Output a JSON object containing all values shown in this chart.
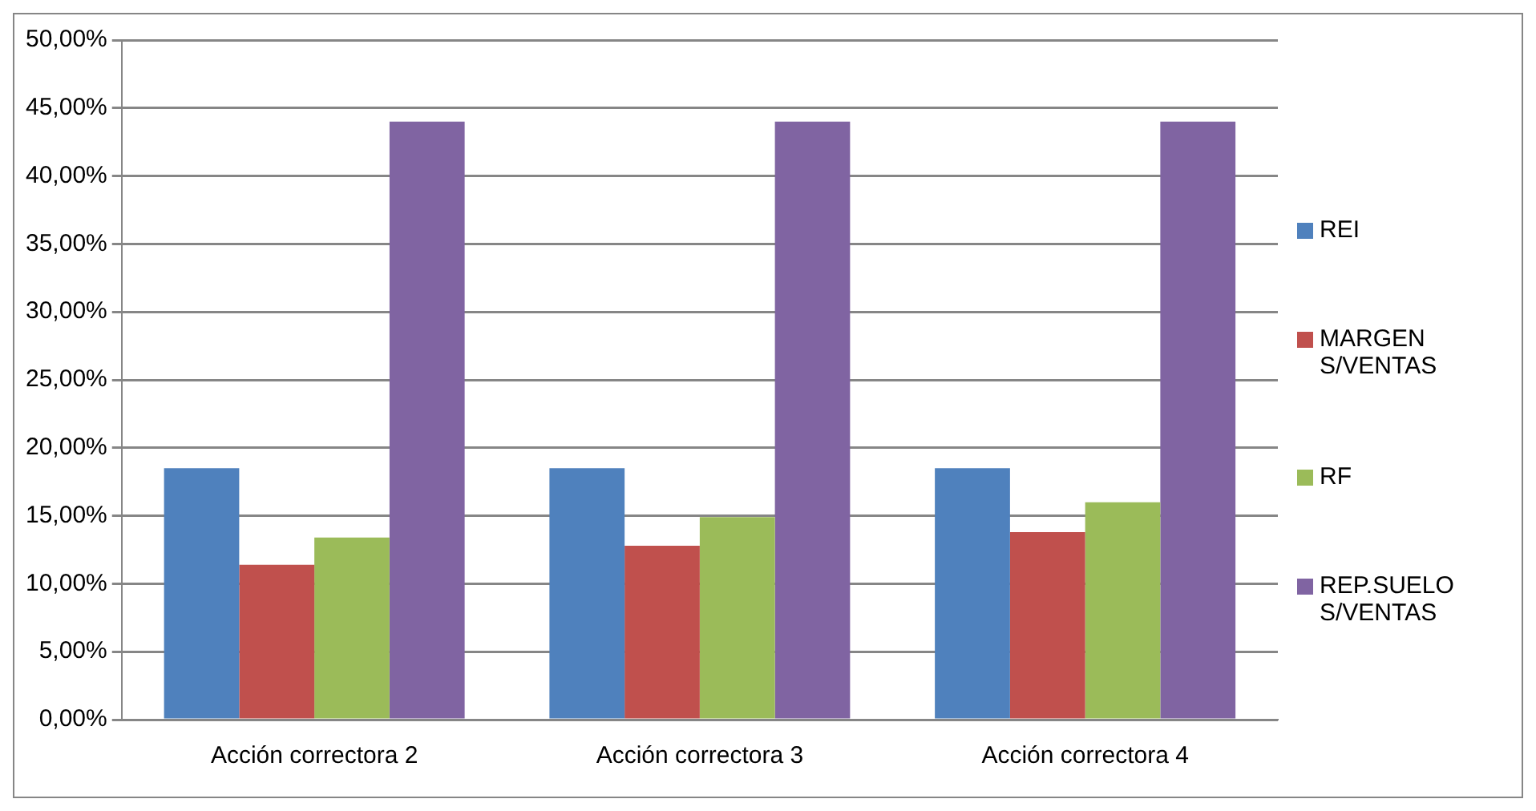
{
  "chart_data": {
    "type": "bar",
    "categories": [
      "Acción correctora 2",
      "Acción correctora 3",
      "Acción correctora 4"
    ],
    "series": [
      {
        "name": "REI",
        "color": "#4f81bd",
        "values": [
          18.5,
          18.5,
          18.5
        ]
      },
      {
        "name": "MARGEN S/VENTAS",
        "color": "#c0504d",
        "values": [
          11.4,
          12.8,
          13.8
        ]
      },
      {
        "name": "RF",
        "color": "#9bbb59",
        "values": [
          13.4,
          14.9,
          16.0
        ]
      },
      {
        "name": "REP.SUELO S/VENTAS",
        "color": "#8064a2",
        "values": [
          44.0,
          44.0,
          44.0
        ]
      }
    ],
    "ylim": [
      0,
      50
    ],
    "yticks": [
      {
        "value": 0,
        "label": "0,00%"
      },
      {
        "value": 5,
        "label": "5,00%"
      },
      {
        "value": 10,
        "label": "10,00%"
      },
      {
        "value": 15,
        "label": "15,00%"
      },
      {
        "value": 20,
        "label": "20,00%"
      },
      {
        "value": 25,
        "label": "25,00%"
      },
      {
        "value": 30,
        "label": "30,00%"
      },
      {
        "value": 35,
        "label": "35,00%"
      },
      {
        "value": 40,
        "label": "40,00%"
      },
      {
        "value": 45,
        "label": "45,00%"
      },
      {
        "value": 50,
        "label": "50,00%"
      }
    ],
    "grid": "y",
    "legend": "right"
  }
}
